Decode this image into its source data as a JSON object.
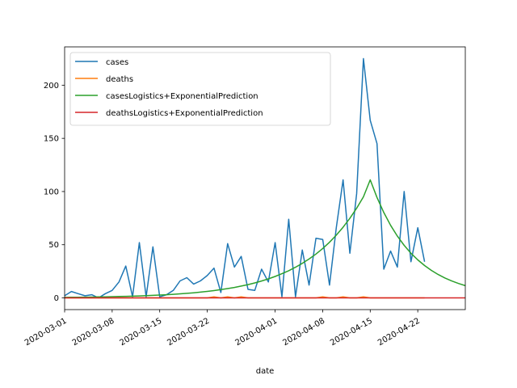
{
  "chart_data": {
    "type": "line",
    "xlabel": "date",
    "ylabel": "",
    "xlim": [
      "2020-03-01",
      "2020-04-29"
    ],
    "ylim": [
      -11,
      236
    ],
    "x_ticks": [
      "2020-03-01",
      "2020-03-08",
      "2020-03-15",
      "2020-03-22",
      "2020-04-01",
      "2020-04-08",
      "2020-04-15",
      "2020-04-22"
    ],
    "y_ticks": [
      0,
      50,
      100,
      150,
      200
    ],
    "legend_position": "upper-left",
    "grid": false,
    "series": [
      {
        "name": "cases",
        "color": "#1f77b4",
        "points": [
          [
            "2020-03-01",
            2
          ],
          [
            "2020-03-02",
            6
          ],
          [
            "2020-03-03",
            4
          ],
          [
            "2020-03-04",
            2
          ],
          [
            "2020-03-05",
            3
          ],
          [
            "2020-03-06",
            0
          ],
          [
            "2020-03-07",
            4
          ],
          [
            "2020-03-08",
            7
          ],
          [
            "2020-03-09",
            15
          ],
          [
            "2020-03-10",
            30
          ],
          [
            "2020-03-11",
            1
          ],
          [
            "2020-03-12",
            52
          ],
          [
            "2020-03-13",
            1
          ],
          [
            "2020-03-14",
            48
          ],
          [
            "2020-03-15",
            1
          ],
          [
            "2020-03-16",
            3
          ],
          [
            "2020-03-17",
            7
          ],
          [
            "2020-03-18",
            16
          ],
          [
            "2020-03-19",
            19
          ],
          [
            "2020-03-20",
            13
          ],
          [
            "2020-03-21",
            16
          ],
          [
            "2020-03-22",
            21
          ],
          [
            "2020-03-23",
            28
          ],
          [
            "2020-03-24",
            5
          ],
          [
            "2020-03-25",
            51
          ],
          [
            "2020-03-26",
            29
          ],
          [
            "2020-03-27",
            39
          ],
          [
            "2020-03-28",
            8
          ],
          [
            "2020-03-29",
            7
          ],
          [
            "2020-03-30",
            27
          ],
          [
            "2020-03-31",
            15
          ],
          [
            "2020-04-01",
            52
          ],
          [
            "2020-04-02",
            1
          ],
          [
            "2020-04-03",
            74
          ],
          [
            "2020-04-04",
            1
          ],
          [
            "2020-04-05",
            45
          ],
          [
            "2020-04-06",
            12
          ],
          [
            "2020-04-07",
            56
          ],
          [
            "2020-04-08",
            55
          ],
          [
            "2020-04-09",
            12
          ],
          [
            "2020-04-10",
            66
          ],
          [
            "2020-04-11",
            111
          ],
          [
            "2020-04-12",
            42
          ],
          [
            "2020-04-13",
            98
          ],
          [
            "2020-04-14",
            225
          ],
          [
            "2020-04-15",
            167
          ],
          [
            "2020-04-16",
            145
          ],
          [
            "2020-04-17",
            27
          ],
          [
            "2020-04-18",
            44
          ],
          [
            "2020-04-19",
            29
          ],
          [
            "2020-04-20",
            100
          ],
          [
            "2020-04-21",
            34
          ],
          [
            "2020-04-22",
            66
          ],
          [
            "2020-04-23",
            34
          ]
        ]
      },
      {
        "name": "deaths",
        "color": "#ff7f0e",
        "points": [
          [
            "2020-03-01",
            0
          ],
          [
            "2020-03-05",
            0
          ],
          [
            "2020-03-10",
            0
          ],
          [
            "2020-03-15",
            0
          ],
          [
            "2020-03-20",
            0
          ],
          [
            "2020-03-22",
            0
          ],
          [
            "2020-03-23",
            1
          ],
          [
            "2020-03-24",
            0
          ],
          [
            "2020-03-25",
            1
          ],
          [
            "2020-03-26",
            0
          ],
          [
            "2020-03-27",
            1
          ],
          [
            "2020-03-28",
            0
          ],
          [
            "2020-04-05",
            0
          ],
          [
            "2020-04-07",
            0
          ],
          [
            "2020-04-08",
            1
          ],
          [
            "2020-04-09",
            0
          ],
          [
            "2020-04-10",
            0
          ],
          [
            "2020-04-11",
            1
          ],
          [
            "2020-04-12",
            0
          ],
          [
            "2020-04-13",
            0
          ],
          [
            "2020-04-14",
            1
          ],
          [
            "2020-04-15",
            0
          ],
          [
            "2020-04-20",
            0
          ],
          [
            "2020-04-23",
            0
          ]
        ]
      },
      {
        "name": "casesLogistics+ExponentialPrediction",
        "color": "#2ca02c",
        "curve": {
          "kind": "rise-peak-decay",
          "start": "2020-03-01",
          "start_value": 0.5,
          "peak": "2020-04-15",
          "peak_value": 111,
          "end": "2020-04-29",
          "end_value": 11.5,
          "drop_to_on_14th": 95
        }
      },
      {
        "name": "deathsLogistics+ExponentialPrediction",
        "color": "#d62728",
        "points": [
          [
            "2020-03-01",
            0
          ],
          [
            "2020-04-29",
            0
          ]
        ]
      }
    ]
  }
}
